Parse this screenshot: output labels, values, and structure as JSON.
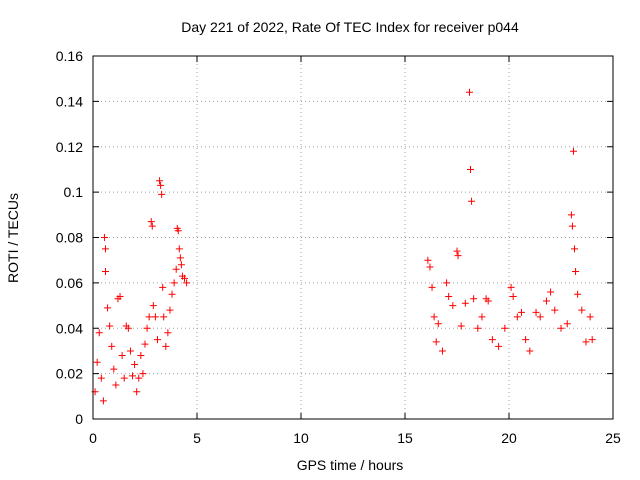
{
  "chart_data": {
    "type": "scatter",
    "title": "Day 221 of 2022, Rate Of TEC Index for receiver p044",
    "xlabel": "GPS time / hours",
    "ylabel": "ROTI / TECUs",
    "xlim": [
      0,
      25
    ],
    "ylim": [
      0,
      0.16
    ],
    "x_ticks": [
      "0",
      "5",
      "10",
      "15",
      "20",
      "25"
    ],
    "y_ticks": [
      "0",
      "0.02",
      "0.04",
      "0.06",
      "0.08",
      "0.1",
      "0.12",
      "0.14",
      "0.16"
    ],
    "grid": true,
    "marker": "+",
    "color": "#ff0000",
    "points": [
      [
        0.1,
        0.012
      ],
      [
        0.2,
        0.025
      ],
      [
        0.3,
        0.038
      ],
      [
        0.4,
        0.018
      ],
      [
        0.5,
        0.008
      ],
      [
        0.55,
        0.08
      ],
      [
        0.6,
        0.075
      ],
      [
        0.6,
        0.065
      ],
      [
        0.7,
        0.049
      ],
      [
        0.8,
        0.041
      ],
      [
        0.9,
        0.032
      ],
      [
        1.0,
        0.022
      ],
      [
        1.1,
        0.015
      ],
      [
        1.2,
        0.053
      ],
      [
        1.3,
        0.054
      ],
      [
        1.4,
        0.028
      ],
      [
        1.5,
        0.018
      ],
      [
        1.6,
        0.041
      ],
      [
        1.7,
        0.04
      ],
      [
        1.8,
        0.03
      ],
      [
        1.9,
        0.019
      ],
      [
        2.0,
        0.024
      ],
      [
        2.1,
        0.012
      ],
      [
        2.2,
        0.018
      ],
      [
        2.3,
        0.028
      ],
      [
        2.4,
        0.02
      ],
      [
        2.5,
        0.033
      ],
      [
        2.6,
        0.04
      ],
      [
        2.7,
        0.045
      ],
      [
        2.8,
        0.087
      ],
      [
        2.85,
        0.085
      ],
      [
        2.9,
        0.05
      ],
      [
        3.0,
        0.045
      ],
      [
        3.1,
        0.035
      ],
      [
        3.2,
        0.105
      ],
      [
        3.25,
        0.103
      ],
      [
        3.3,
        0.099
      ],
      [
        3.35,
        0.058
      ],
      [
        3.4,
        0.045
      ],
      [
        3.5,
        0.032
      ],
      [
        3.6,
        0.038
      ],
      [
        3.7,
        0.048
      ],
      [
        3.8,
        0.055
      ],
      [
        3.9,
        0.06
      ],
      [
        4.0,
        0.066
      ],
      [
        4.05,
        0.084
      ],
      [
        4.1,
        0.083
      ],
      [
        4.15,
        0.075
      ],
      [
        4.2,
        0.071
      ],
      [
        4.25,
        0.068
      ],
      [
        4.3,
        0.063
      ],
      [
        4.4,
        0.062
      ],
      [
        4.5,
        0.06
      ],
      [
        16.1,
        0.07
      ],
      [
        16.2,
        0.067
      ],
      [
        16.3,
        0.058
      ],
      [
        16.4,
        0.045
      ],
      [
        16.5,
        0.034
      ],
      [
        16.6,
        0.042
      ],
      [
        16.8,
        0.03
      ],
      [
        17.0,
        0.06
      ],
      [
        17.1,
        0.054
      ],
      [
        17.3,
        0.05
      ],
      [
        17.5,
        0.074
      ],
      [
        17.55,
        0.072
      ],
      [
        17.7,
        0.041
      ],
      [
        17.9,
        0.051
      ],
      [
        18.1,
        0.144
      ],
      [
        18.15,
        0.11
      ],
      [
        18.2,
        0.096
      ],
      [
        18.3,
        0.053
      ],
      [
        18.5,
        0.04
      ],
      [
        18.7,
        0.045
      ],
      [
        18.9,
        0.053
      ],
      [
        19.0,
        0.052
      ],
      [
        19.2,
        0.035
      ],
      [
        19.5,
        0.032
      ],
      [
        19.8,
        0.04
      ],
      [
        20.1,
        0.058
      ],
      [
        20.2,
        0.054
      ],
      [
        20.4,
        0.045
      ],
      [
        20.6,
        0.047
      ],
      [
        20.8,
        0.035
      ],
      [
        21.0,
        0.03
      ],
      [
        21.3,
        0.047
      ],
      [
        21.5,
        0.045
      ],
      [
        21.8,
        0.052
      ],
      [
        22.0,
        0.056
      ],
      [
        22.2,
        0.048
      ],
      [
        22.5,
        0.04
      ],
      [
        22.8,
        0.042
      ],
      [
        23.0,
        0.09
      ],
      [
        23.05,
        0.085
      ],
      [
        23.1,
        0.118
      ],
      [
        23.15,
        0.075
      ],
      [
        23.2,
        0.065
      ],
      [
        23.3,
        0.055
      ],
      [
        23.5,
        0.048
      ],
      [
        23.7,
        0.034
      ],
      [
        23.9,
        0.045
      ],
      [
        24.0,
        0.035
      ]
    ]
  }
}
